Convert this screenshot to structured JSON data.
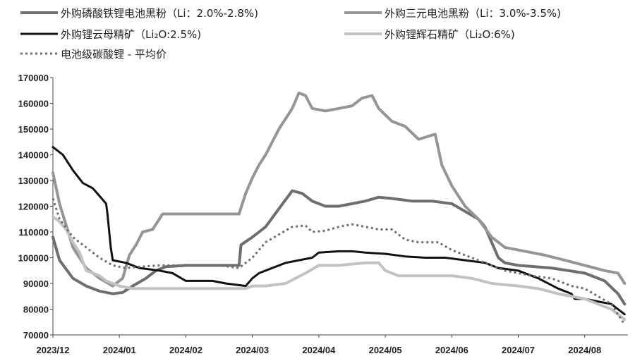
{
  "chart_data": {
    "type": "line",
    "title": "",
    "xlabel": "",
    "ylabel": "",
    "ylim": [
      70000,
      170000
    ],
    "yticks": [
      70000,
      80000,
      90000,
      100000,
      110000,
      120000,
      130000,
      140000,
      150000,
      160000,
      170000
    ],
    "xlim": [
      0,
      8.65
    ],
    "xticks": [
      {
        "pos": 0,
        "label": "2023/12"
      },
      {
        "pos": 1,
        "label": "2024/01"
      },
      {
        "pos": 2,
        "label": "2024/02"
      },
      {
        "pos": 3,
        "label": "2024/03"
      },
      {
        "pos": 4,
        "label": "2024/04"
      },
      {
        "pos": 5,
        "label": "2024/05"
      },
      {
        "pos": 6,
        "label": "2024/06"
      },
      {
        "pos": 7,
        "label": "2024/07"
      },
      {
        "pos": 8,
        "label": "2024/08"
      }
    ],
    "grid": false,
    "legend_position": "top",
    "series": [
      {
        "name": "外购磷酸铁锂电池黑粉（Li：2.0%-2.8%)",
        "color": "#6e6e6e",
        "width": 4,
        "dash": "",
        "points": [
          [
            0,
            108000
          ],
          [
            0.1,
            99000
          ],
          [
            0.3,
            92000
          ],
          [
            0.5,
            89000
          ],
          [
            0.7,
            87000
          ],
          [
            0.9,
            86000
          ],
          [
            1.05,
            86500
          ],
          [
            1.2,
            89000
          ],
          [
            1.4,
            92000
          ],
          [
            1.55,
            95000
          ],
          [
            1.7,
            96500
          ],
          [
            2,
            97000
          ],
          [
            2.5,
            97000
          ],
          [
            2.8,
            97000
          ],
          [
            2.83,
            105000
          ],
          [
            3,
            108000
          ],
          [
            3.2,
            112000
          ],
          [
            3.4,
            119000
          ],
          [
            3.6,
            126000
          ],
          [
            3.75,
            125000
          ],
          [
            3.9,
            122000
          ],
          [
            4.1,
            120000
          ],
          [
            4.3,
            120000
          ],
          [
            4.5,
            121000
          ],
          [
            4.7,
            122000
          ],
          [
            4.9,
            123500
          ],
          [
            5.1,
            123000
          ],
          [
            5.4,
            122000
          ],
          [
            5.7,
            122000
          ],
          [
            6,
            121000
          ],
          [
            6.2,
            118000
          ],
          [
            6.4,
            115000
          ],
          [
            6.5,
            112000
          ],
          [
            6.6,
            106000
          ],
          [
            6.7,
            100000
          ],
          [
            6.8,
            98000
          ],
          [
            7,
            97000
          ],
          [
            7.5,
            96000
          ],
          [
            8,
            94000
          ],
          [
            8.3,
            91000
          ],
          [
            8.5,
            86000
          ],
          [
            8.6,
            82000
          ]
        ]
      },
      {
        "name": "外购三元电池黑粉（Li：3.0%-3.5%)",
        "color": "#959595",
        "width": 4,
        "dash": "",
        "points": [
          [
            0,
            133000
          ],
          [
            0.1,
            121000
          ],
          [
            0.3,
            104000
          ],
          [
            0.5,
            96000
          ],
          [
            0.7,
            92000
          ],
          [
            0.9,
            89000
          ],
          [
            1.05,
            92000
          ],
          [
            1.15,
            101000
          ],
          [
            1.25,
            105000
          ],
          [
            1.35,
            110000
          ],
          [
            1.5,
            111000
          ],
          [
            1.65,
            117000
          ],
          [
            2,
            117000
          ],
          [
            2.4,
            117000
          ],
          [
            2.8,
            117000
          ],
          [
            2.9,
            125000
          ],
          [
            3,
            131000
          ],
          [
            3.1,
            136000
          ],
          [
            3.2,
            140000
          ],
          [
            3.3,
            145000
          ],
          [
            3.4,
            150000
          ],
          [
            3.5,
            154000
          ],
          [
            3.6,
            158000
          ],
          [
            3.7,
            164000
          ],
          [
            3.8,
            163000
          ],
          [
            3.9,
            158000
          ],
          [
            4.1,
            157000
          ],
          [
            4.3,
            158000
          ],
          [
            4.5,
            159000
          ],
          [
            4.65,
            162000
          ],
          [
            4.8,
            163000
          ],
          [
            4.9,
            158000
          ],
          [
            5.1,
            153000
          ],
          [
            5.3,
            151000
          ],
          [
            5.5,
            146000
          ],
          [
            5.75,
            148000
          ],
          [
            5.85,
            136000
          ],
          [
            6,
            128000
          ],
          [
            6.2,
            120000
          ],
          [
            6.4,
            115000
          ],
          [
            6.6,
            108000
          ],
          [
            6.8,
            104000
          ],
          [
            7,
            103000
          ],
          [
            7.4,
            101000
          ],
          [
            7.7,
            99000
          ],
          [
            8,
            97000
          ],
          [
            8.3,
            95000
          ],
          [
            8.5,
            94000
          ],
          [
            8.6,
            90000
          ]
        ]
      },
      {
        "name": "外购锂云母精矿（Li₂O:2.5%)",
        "color": "#111111",
        "width": 3,
        "dash": "",
        "points": [
          [
            0,
            143000
          ],
          [
            0.15,
            140000
          ],
          [
            0.3,
            134000
          ],
          [
            0.45,
            129000
          ],
          [
            0.6,
            127000
          ],
          [
            0.7,
            124000
          ],
          [
            0.8,
            121000
          ],
          [
            0.82,
            117000
          ],
          [
            0.87,
            104000
          ],
          [
            0.9,
            99000
          ],
          [
            1.1,
            98000
          ],
          [
            1.3,
            96000
          ],
          [
            1.6,
            95000
          ],
          [
            1.8,
            94000
          ],
          [
            2,
            91000
          ],
          [
            2.4,
            91000
          ],
          [
            2.6,
            90000
          ],
          [
            2.9,
            89000
          ],
          [
            3,
            92000
          ],
          [
            3.1,
            94000
          ],
          [
            3.3,
            96000
          ],
          [
            3.5,
            98000
          ],
          [
            3.7,
            99000
          ],
          [
            3.9,
            100000
          ],
          [
            4,
            102000
          ],
          [
            4.3,
            102500
          ],
          [
            4.5,
            102500
          ],
          [
            4.7,
            102000
          ],
          [
            5,
            101500
          ],
          [
            5.3,
            100500
          ],
          [
            5.6,
            100000
          ],
          [
            5.9,
            100000
          ],
          [
            6.2,
            99000
          ],
          [
            6.5,
            98000
          ],
          [
            6.7,
            96000
          ],
          [
            7,
            95000
          ],
          [
            7.3,
            92000
          ],
          [
            7.6,
            88000
          ],
          [
            7.8,
            86000
          ],
          [
            7.85,
            84000
          ],
          [
            8,
            84000
          ],
          [
            8.2,
            83000
          ],
          [
            8.4,
            82000
          ],
          [
            8.6,
            78000
          ]
        ]
      },
      {
        "name": "外购锂辉石精矿（Li₂O:6%)",
        "color": "#c2c2c2",
        "width": 4,
        "dash": "",
        "points": [
          [
            0,
            116000
          ],
          [
            0.1,
            114000
          ],
          [
            0.2,
            111000
          ],
          [
            0.3,
            106000
          ],
          [
            0.4,
            102000
          ],
          [
            0.5,
            95000
          ],
          [
            0.6,
            94000
          ],
          [
            0.7,
            93000
          ],
          [
            0.8,
            91000
          ],
          [
            0.9,
            90000
          ],
          [
            1,
            89000
          ],
          [
            1.2,
            88000
          ],
          [
            1.5,
            88000
          ],
          [
            2,
            88000
          ],
          [
            2.5,
            88000
          ],
          [
            2.9,
            88000
          ],
          [
            3,
            89000
          ],
          [
            3.2,
            89000
          ],
          [
            3.5,
            90000
          ],
          [
            3.8,
            94000
          ],
          [
            4,
            97000
          ],
          [
            4.3,
            97000
          ],
          [
            4.7,
            98000
          ],
          [
            4.9,
            98000
          ],
          [
            5,
            95000
          ],
          [
            5.2,
            93000
          ],
          [
            5.5,
            93000
          ],
          [
            6,
            93000
          ],
          [
            6.3,
            92000
          ],
          [
            6.6,
            90000
          ],
          [
            7,
            89000
          ],
          [
            7.3,
            88000
          ],
          [
            7.6,
            86000
          ],
          [
            8,
            84000
          ],
          [
            8.2,
            82000
          ],
          [
            8.4,
            80000
          ],
          [
            8.6,
            76000
          ]
        ]
      },
      {
        "name": "电池级碳酸锂 - 平均价",
        "color": "#6e6e6e",
        "width": 3,
        "dash": "3,4",
        "points": [
          [
            0,
            123000
          ],
          [
            0.1,
            115000
          ],
          [
            0.3,
            108000
          ],
          [
            0.5,
            104000
          ],
          [
            0.7,
            100000
          ],
          [
            0.9,
            97000
          ],
          [
            1.1,
            96000
          ],
          [
            1.3,
            96500
          ],
          [
            1.6,
            97000
          ],
          [
            2,
            97000
          ],
          [
            2.5,
            97000
          ],
          [
            2.8,
            96000
          ],
          [
            3,
            100000
          ],
          [
            3.2,
            106000
          ],
          [
            3.4,
            109000
          ],
          [
            3.6,
            112000
          ],
          [
            3.8,
            112500
          ],
          [
            3.9,
            110000
          ],
          [
            4.1,
            110500
          ],
          [
            4.3,
            112000
          ],
          [
            4.5,
            113000
          ],
          [
            4.7,
            112000
          ],
          [
            4.9,
            111000
          ],
          [
            5.1,
            111000
          ],
          [
            5.3,
            107000
          ],
          [
            5.5,
            106000
          ],
          [
            5.8,
            106000
          ],
          [
            6,
            103000
          ],
          [
            6.2,
            101000
          ],
          [
            6.4,
            99000
          ],
          [
            6.6,
            97000
          ],
          [
            6.8,
            95000
          ],
          [
            7,
            94000
          ],
          [
            7.2,
            93000
          ],
          [
            7.5,
            92000
          ],
          [
            7.8,
            89000
          ],
          [
            8,
            88000
          ],
          [
            8.2,
            85000
          ],
          [
            8.4,
            82000
          ],
          [
            8.6,
            74000
          ]
        ]
      }
    ]
  }
}
